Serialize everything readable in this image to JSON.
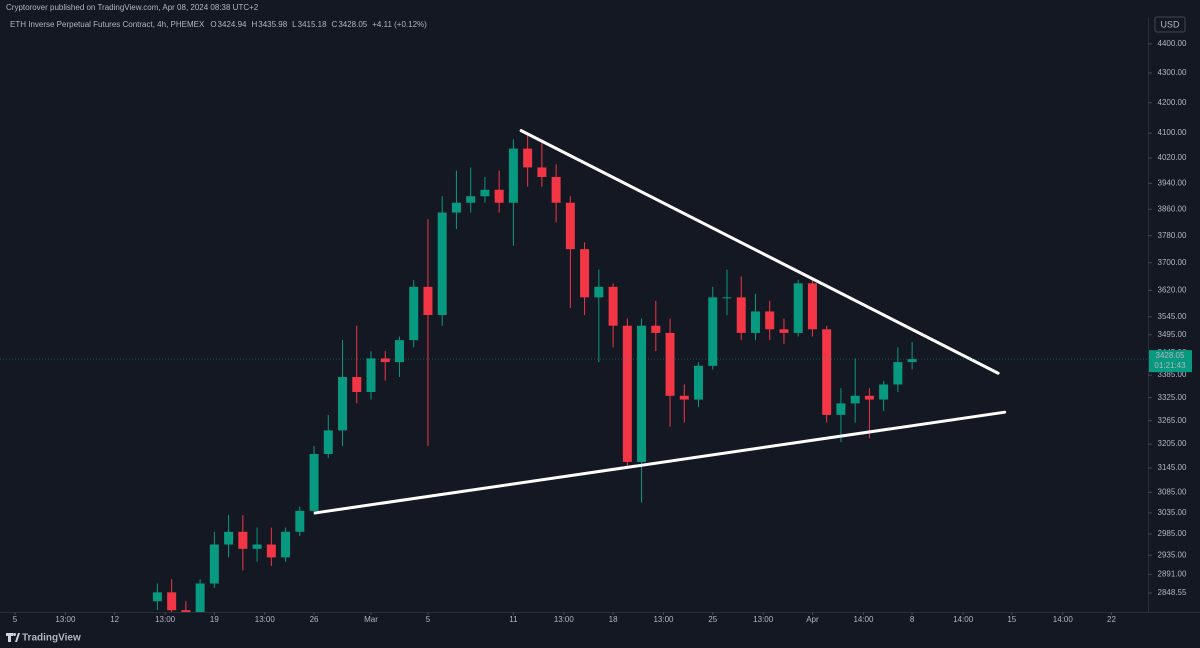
{
  "header": {
    "publisher": "Cryptorover published on TradingView.com, Apr 08, 2024 08:38 UTC+2",
    "symbol": "ETH Inverse Perpetual Futures Contract, 4h, PHEMEX",
    "fields": [
      {
        "label": "O",
        "value": "3424.94"
      },
      {
        "label": "H",
        "value": "3435.98"
      },
      {
        "label": "L",
        "value": "3415.18"
      },
      {
        "label": "C",
        "value": "3428.05"
      }
    ],
    "change": "+4.11 (+0.12%)",
    "currency": "USD",
    "countdown": "01:21:43",
    "brand": "TradingView"
  },
  "chart_data": {
    "type": "candlestick",
    "log_scale": true,
    "grid": false,
    "up_color": "#089981",
    "down_color": "#f23645",
    "x": [
      "Feb 15",
      "Feb 16",
      "Feb 17",
      "Feb 18",
      "Feb 19",
      "Feb 20",
      "Feb 21",
      "Feb 22",
      "Feb 23",
      "Feb 24",
      "Feb 25",
      "Feb 26",
      "Feb 27",
      "Feb 28",
      "Feb 29",
      "Mar 1",
      "Mar 2",
      "Mar 3",
      "Mar 4",
      "Mar 5",
      "Mar 6",
      "Mar 7",
      "Mar 8",
      "Mar 9",
      "Mar 10",
      "Mar 11",
      "Mar 12",
      "Mar 13",
      "Mar 14",
      "Mar 15",
      "Mar 16",
      "Mar 17",
      "Mar 18",
      "Mar 19",
      "Mar 20",
      "Mar 21",
      "Mar 22",
      "Mar 23",
      "Mar 24",
      "Mar 25",
      "Mar 26",
      "Mar 27",
      "Mar 28",
      "Mar 29",
      "Mar 30",
      "Mar 31",
      "Apr 1",
      "Apr 2",
      "Apr 3",
      "Apr 4",
      "Apr 5",
      "Apr 6",
      "Apr 7",
      "Apr 8"
    ],
    "open": [
      2830,
      2850,
      2810,
      2790,
      2870,
      2960,
      2990,
      2950,
      2960,
      2930,
      2990,
      3040,
      3180,
      3240,
      3380,
      3340,
      3430,
      3420,
      3480,
      3630,
      3550,
      3850,
      3880,
      3900,
      3920,
      3880,
      4050,
      3990,
      3960,
      3880,
      3740,
      3600,
      3630,
      3520,
      3160,
      3520,
      3500,
      3330,
      3320,
      3410,
      3600,
      3600,
      3500,
      3560,
      3510,
      3500,
      3640,
      3510,
      3280,
      3310,
      3330,
      3320,
      3360,
      3420
    ],
    "high": [
      2870,
      2880,
      2830,
      2880,
      2990,
      3030,
      3030,
      3000,
      3000,
      3000,
      3050,
      3200,
      3280,
      3480,
      3520,
      3450,
      3450,
      3490,
      3650,
      3830,
      3900,
      3980,
      3990,
      3960,
      3980,
      4080,
      4100,
      4080,
      4000,
      3900,
      3760,
      3680,
      3640,
      3540,
      3540,
      3590,
      3540,
      3360,
      3420,
      3630,
      3680,
      3660,
      3610,
      3590,
      3540,
      3650,
      3650,
      3520,
      3350,
      3430,
      3350,
      3370,
      3460,
      3475
    ],
    "low": [
      2810,
      2790,
      2760,
      2780,
      2860,
      2930,
      2900,
      2920,
      2910,
      2920,
      2980,
      3030,
      3170,
      3200,
      3310,
      3320,
      3370,
      3380,
      3460,
      3200,
      3520,
      3800,
      3850,
      3880,
      3850,
      3750,
      3930,
      3930,
      3820,
      3570,
      3550,
      3420,
      3460,
      3150,
      3060,
      3450,
      3250,
      3260,
      3300,
      3400,
      3550,
      3480,
      3480,
      3480,
      3470,
      3490,
      3490,
      3260,
      3210,
      3260,
      3220,
      3290,
      3340,
      3400
    ],
    "close": [
      2850,
      2810,
      2790,
      2870,
      2960,
      2990,
      2950,
      2960,
      2930,
      2990,
      3040,
      3180,
      3240,
      3380,
      3340,
      3430,
      3420,
      3480,
      3630,
      3550,
      3850,
      3880,
      3900,
      3920,
      3880,
      4050,
      3990,
      3960,
      3880,
      3740,
      3600,
      3630,
      3520,
      3160,
      3520,
      3500,
      3330,
      3320,
      3410,
      3600,
      3600,
      3500,
      3560,
      3510,
      3500,
      3640,
      3510,
      3280,
      3310,
      3330,
      3320,
      3360,
      3420,
      3428.05
    ],
    "ylim": [
      2806,
      4477
    ],
    "yticks": [
      {
        "value": 4400,
        "label": "4400.00"
      },
      {
        "value": 4300,
        "label": "4300.00"
      },
      {
        "value": 4200,
        "label": "4200.00"
      },
      {
        "value": 4100,
        "label": "4100.00"
      },
      {
        "value": 4020,
        "label": "4020.00"
      },
      {
        "value": 3940,
        "label": "3940.00"
      },
      {
        "value": 3860,
        "label": "3860.00"
      },
      {
        "value": 3780,
        "label": "3780.00"
      },
      {
        "value": 3700,
        "label": "3700.00"
      },
      {
        "value": 3620,
        "label": "3620.00"
      },
      {
        "value": 3545,
        "label": "3545.00"
      },
      {
        "value": 3495,
        "label": "3495.00"
      },
      {
        "value": 3445,
        "label": "3445.00"
      },
      {
        "value": 3385,
        "label": "3385.00"
      },
      {
        "value": 3325,
        "label": "3325.00"
      },
      {
        "value": 3265,
        "label": "3265.00"
      },
      {
        "value": 3205,
        "label": "3205.00"
      },
      {
        "value": 3145,
        "label": "3145.00"
      },
      {
        "value": 3085,
        "label": "3085.00"
      },
      {
        "value": 3035,
        "label": "3035.00"
      },
      {
        "value": 2985,
        "label": "2985.00"
      },
      {
        "value": 2935,
        "label": "2935.00"
      },
      {
        "value": 2891,
        "label": "2891.00"
      },
      {
        "value": 2848.55,
        "label": "2848.55"
      }
    ],
    "xticks": [
      {
        "value": "Feb 5",
        "label": "5"
      },
      {
        "value": "Feb 8 13:00",
        "label": "13:00"
      },
      {
        "value": "Feb 12",
        "label": "12"
      },
      {
        "value": "Feb 15 13:00",
        "label": "13:00"
      },
      {
        "value": "Feb 19",
        "label": "19"
      },
      {
        "value": "Feb 22 13:00",
        "label": "13:00"
      },
      {
        "value": "Feb 26",
        "label": "26"
      },
      {
        "value": "Mar 1",
        "label": "Mar"
      },
      {
        "value": "Mar 5",
        "label": "5"
      },
      {
        "value": "Mar 11",
        "label": "11"
      },
      {
        "value": "Mar 14 13:00",
        "label": "13:00"
      },
      {
        "value": "Mar 18",
        "label": "18"
      },
      {
        "value": "Mar 21 13:00",
        "label": "13:00"
      },
      {
        "value": "Mar 25",
        "label": "25"
      },
      {
        "value": "Mar 28 13:00",
        "label": "13:00"
      },
      {
        "value": "Apr 1",
        "label": "Apr"
      },
      {
        "value": "Apr 4 14:00",
        "label": "14:00"
      },
      {
        "value": "Apr 8",
        "label": "8"
      },
      {
        "value": "Apr 11 14:00",
        "label": "14:00"
      },
      {
        "value": "Apr 15",
        "label": "15"
      },
      {
        "value": "Apr 18 14:00",
        "label": "14:00"
      },
      {
        "value": "Apr 22",
        "label": "22"
      }
    ],
    "trendlines": [
      {
        "color": "#ffffff",
        "x": [
          "Mar 11 13:00",
          "Apr 14 01:00"
        ],
        "y": [
          4108,
          3390
        ]
      },
      {
        "color": "#ffffff",
        "x": [
          "Feb 26 02:00",
          "Apr 14 12:00"
        ],
        "y": [
          3035,
          3287
        ]
      }
    ]
  }
}
